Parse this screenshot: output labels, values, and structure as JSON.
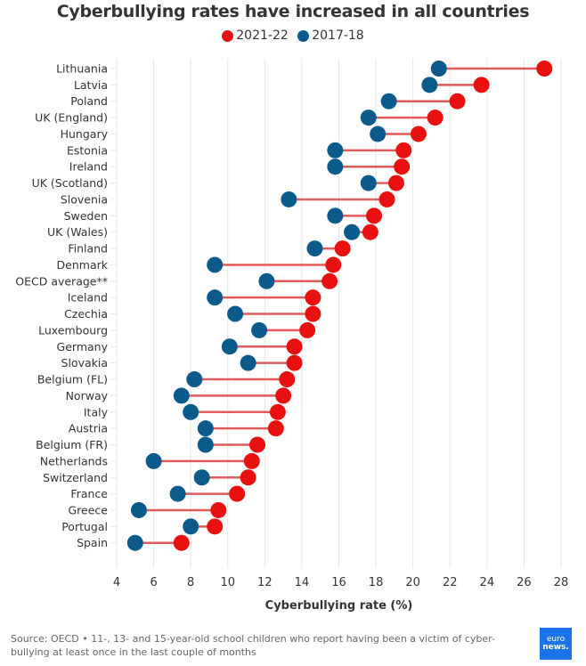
{
  "chart_data": {
    "type": "dumbbell",
    "title": "Cyberbullying rates have increased in all countries",
    "xlabel": "Cyberbullying rate (%)",
    "ylabel": "",
    "xlim": [
      4,
      28
    ],
    "xticks": [
      4,
      6,
      8,
      10,
      12,
      14,
      16,
      18,
      20,
      22,
      24,
      26,
      28
    ],
    "grid": true,
    "legend_position": "top-center",
    "categories": [
      "Lithuania",
      "Latvia",
      "Poland",
      "UK (England)",
      "Hungary",
      "Estonia",
      "Ireland",
      "UK (Scotland)",
      "Slovenia",
      "Sweden",
      "UK (Wales)",
      "Finland",
      "Denmark",
      "OECD average**",
      "Iceland",
      "Czechia",
      "Luxembourg",
      "Germany",
      "Slovakia",
      "Belgium (FL)",
      "Norway",
      "Italy",
      "Austria",
      "Belgium (FR)",
      "Netherlands",
      "Switzerland",
      "France",
      "Greece",
      "Portugal",
      "Spain"
    ],
    "series": [
      {
        "name": "2021-22",
        "color": "#e8110f",
        "values": [
          27.1,
          23.7,
          22.4,
          21.2,
          20.3,
          19.5,
          19.4,
          19.1,
          18.6,
          17.9,
          17.7,
          16.2,
          15.7,
          15.5,
          14.6,
          14.6,
          14.3,
          13.6,
          13.6,
          13.2,
          13.0,
          12.7,
          12.6,
          11.6,
          11.3,
          11.1,
          10.5,
          9.5,
          9.3,
          7.5
        ]
      },
      {
        "name": "2017-18",
        "color": "#0b5a8c",
        "values": [
          21.4,
          20.9,
          18.7,
          17.6,
          18.1,
          15.8,
          15.8,
          17.6,
          13.3,
          15.8,
          16.7,
          14.7,
          9.3,
          12.1,
          9.3,
          10.4,
          11.7,
          10.1,
          11.1,
          8.2,
          7.5,
          8.0,
          8.8,
          8.8,
          6.0,
          8.6,
          7.3,
          5.2,
          8.0,
          5.0
        ]
      }
    ],
    "connector_color": "#e05a5a"
  },
  "legend": [
    {
      "label": "2021-22",
      "color": "#e8110f"
    },
    {
      "label": "2017-18",
      "color": "#0b5a8c"
    }
  ],
  "footer": {
    "source": "Source: OECD • 11-, 13- and 15-year-old school children who report having been a victim of cyber-bullying at least once in the last couple of months",
    "logo_line1": "euro",
    "logo_line2": "news."
  }
}
